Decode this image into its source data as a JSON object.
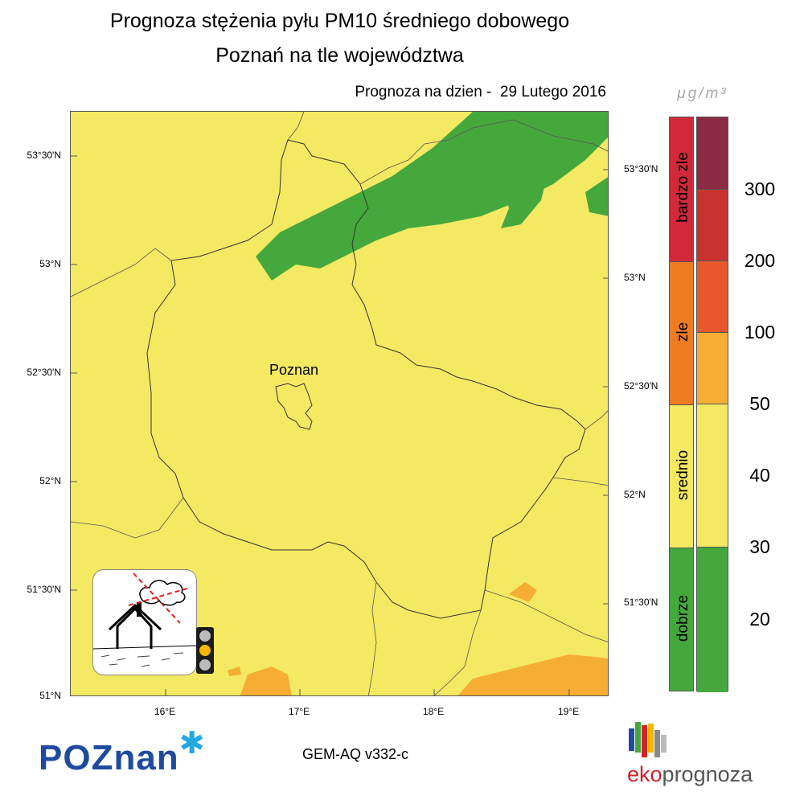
{
  "title_line1": "Prognoza stężenia pyłu PM10 średniego dobowego",
  "title_line2": "Poznań na tle województwa",
  "date_label": "Prognoza na dzien -  29 Lutego 2016",
  "unit_label": "μg/m³",
  "city_label": "Poznan",
  "lat_labels_left": [
    "53°30'N",
    "53°N",
    "52°30'N",
    "52°N",
    "51°30'N",
    "51°N"
  ],
  "lat_labels_right": [
    "53°30'N",
    "53°N",
    "52°30'N",
    "52°N",
    "51°30'N"
  ],
  "lon_labels": [
    "16°E",
    "17°E",
    "18°E",
    "19°E"
  ],
  "categories": [
    {
      "label": "bardzo zle",
      "color": "#d02a3a"
    },
    {
      "label": "zle",
      "color": "#ee7b22"
    },
    {
      "label": "srednio",
      "color": "#f4e962"
    },
    {
      "label": "dobrze",
      "color": "#45a83d"
    }
  ],
  "scale_colors": [
    "#8d2a44",
    "#c8332f",
    "#e9582a",
    "#f5ad33",
    "#f4e962",
    "#f4e962",
    "#45a83d"
  ],
  "scale_values": [
    "300",
    "200",
    "100",
    "50",
    "40",
    "30",
    "20"
  ],
  "model_label": "GEM-AQ v332-c",
  "logo_poznan": "POZnan",
  "logo_eko_prefix": "eko",
  "logo_eko_suffix": "prognoza",
  "icons": [
    "house-smoke-icon",
    "traffic-light-icon",
    "poznan-star-icon",
    "ekoprognoza-bars-icon"
  ]
}
